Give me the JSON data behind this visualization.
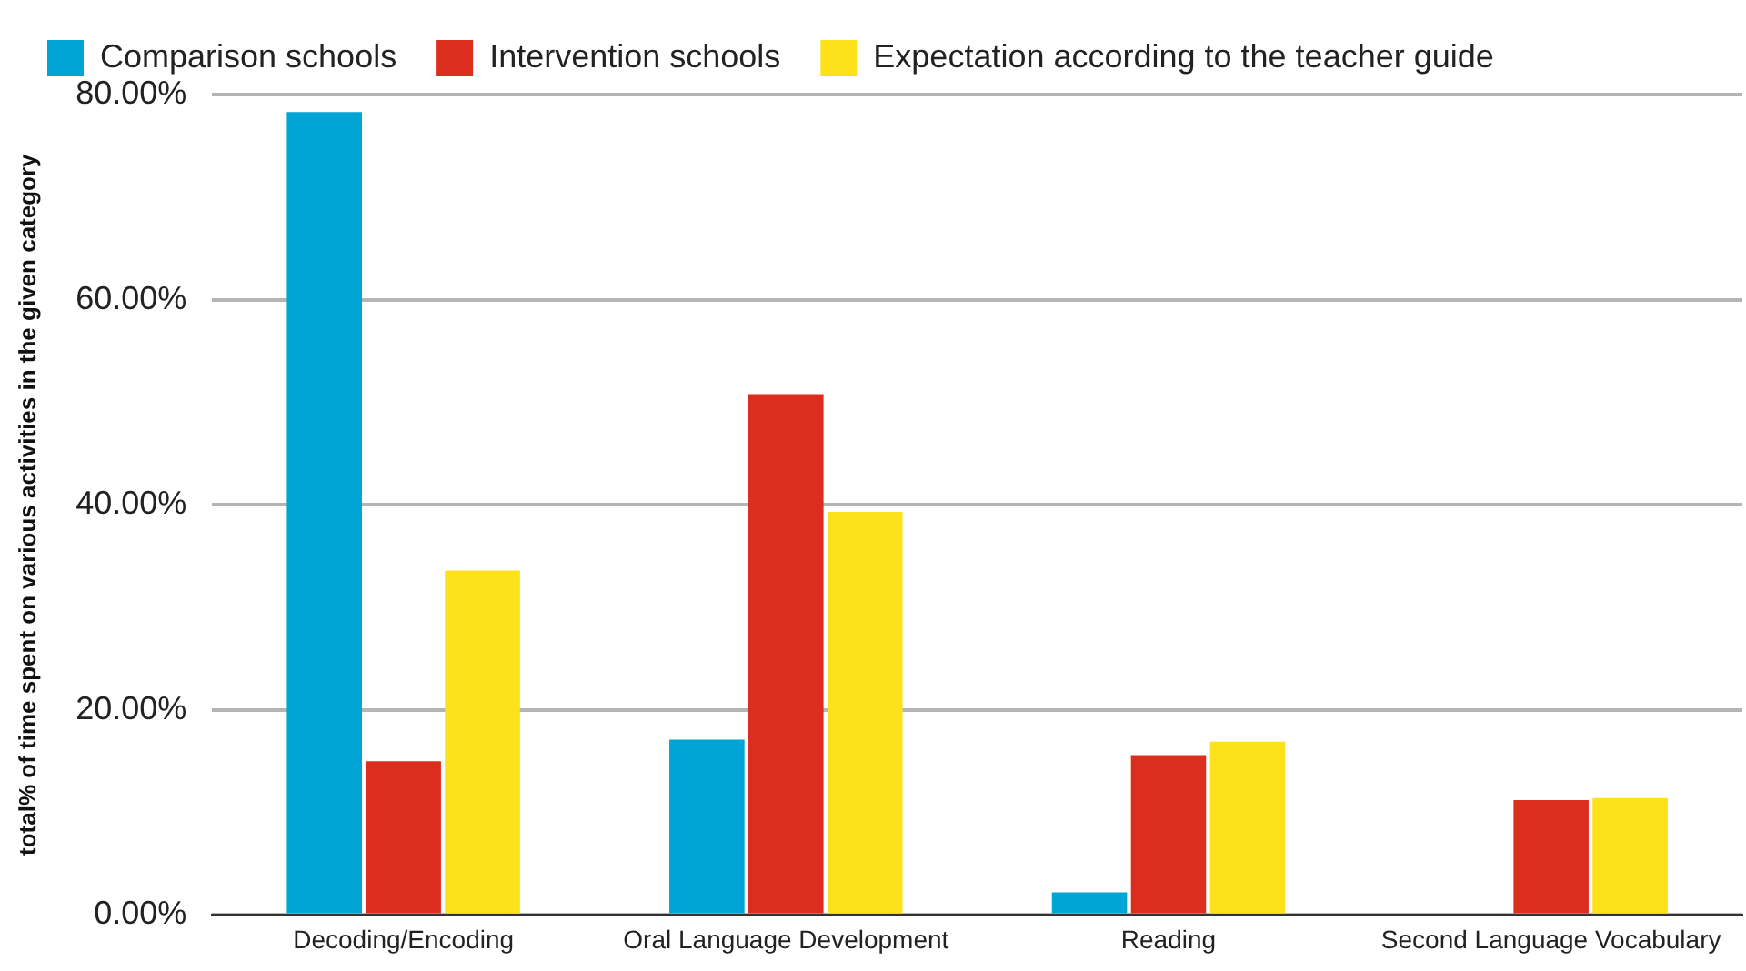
{
  "chart_data": {
    "type": "bar",
    "ylabel": "total% of time spent on various activities in the given category",
    "categories": [
      "Decoding/Encoding",
      "Oral Language Development",
      "Reading",
      "Second Language Vocabulary"
    ],
    "series": [
      {
        "name": "Comparison schools",
        "color": "#00a5d6",
        "values": [
          78.3,
          17.1,
          2.2,
          0
        ]
      },
      {
        "name": "Intervention schools",
        "color": "#dc2e1f",
        "values": [
          15.0,
          50.8,
          15.6,
          11.2
        ]
      },
      {
        "name": "Expectation according to the teacher guide",
        "color": "#fde11a",
        "values": [
          33.6,
          39.3,
          16.9,
          11.4
        ]
      }
    ],
    "ylim": [
      0,
      80
    ],
    "yticks": [
      {
        "value": 0,
        "label": "0.00%"
      },
      {
        "value": 20,
        "label": "20.00%"
      },
      {
        "value": 40,
        "label": "40.00%"
      },
      {
        "value": 60,
        "label": "60.00%"
      },
      {
        "value": 80,
        "label": "80.00%"
      }
    ],
    "grid": "y",
    "legend": "top left"
  }
}
